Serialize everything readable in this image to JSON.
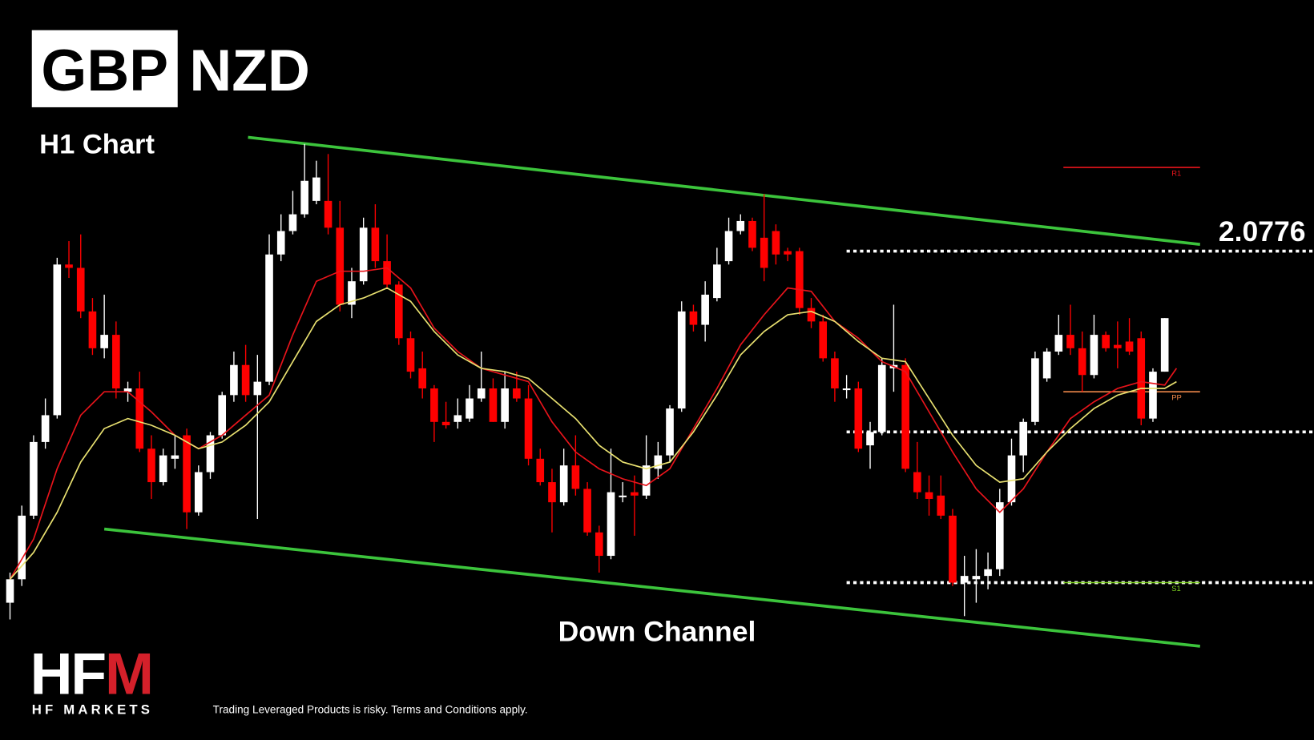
{
  "header": {
    "base": "GBP",
    "quote": "NZD",
    "timeframe": "H1 Chart"
  },
  "chart_data": {
    "type": "candlestick",
    "annotation": "Down Channel",
    "up_color": "#ffffff",
    "down_color": "#ff0000",
    "xlim": [
      -0.85,
      110.67
    ],
    "ylim": [
      2.063,
      2.0851
    ],
    "ohlc": [
      [
        2.0671,
        2.068,
        2.0666,
        2.0678
      ],
      [
        2.0678,
        2.07,
        2.0676,
        2.0697
      ],
      [
        2.0697,
        2.0721,
        2.0696,
        2.0719
      ],
      [
        2.0719,
        2.0732,
        2.0717,
        2.0727
      ],
      [
        2.0727,
        2.0774,
        2.0726,
        2.0772
      ],
      [
        2.0772,
        2.0779,
        2.0768,
        2.0771
      ],
      [
        2.0771,
        2.0781,
        2.0756,
        2.0758
      ],
      [
        2.0758,
        2.0762,
        2.0745,
        2.0747
      ],
      [
        2.0747,
        2.0763,
        2.0744,
        2.0751
      ],
      [
        2.0751,
        2.0755,
        2.0732,
        2.0735
      ],
      [
        2.0734,
        2.0737,
        2.0731,
        2.0735
      ],
      [
        2.0735,
        2.074,
        2.0716,
        2.0717
      ],
      [
        2.0717,
        2.0721,
        2.0702,
        2.0707
      ],
      [
        2.0707,
        2.0717,
        2.0706,
        2.0715
      ],
      [
        2.0714,
        2.0721,
        2.0711,
        2.0715
      ],
      [
        2.0721,
        2.0723,
        2.0693,
        2.0698
      ],
      [
        2.0698,
        2.0712,
        2.0697,
        2.071
      ],
      [
        2.071,
        2.0722,
        2.0708,
        2.0721
      ],
      [
        2.0721,
        2.0734,
        2.072,
        2.0733
      ],
      [
        2.0733,
        2.0746,
        2.0731,
        2.0742
      ],
      [
        2.0742,
        2.0748,
        2.0731,
        2.0733
      ],
      [
        2.0733,
        2.0745,
        2.0696,
        2.0737
      ],
      [
        2.0737,
        2.0781,
        2.0736,
        2.0775
      ],
      [
        2.0775,
        2.0787,
        2.0773,
        2.0782
      ],
      [
        2.0782,
        2.0794,
        2.0781,
        2.0787
      ],
      [
        2.0787,
        2.0808,
        2.0786,
        2.0797
      ],
      [
        2.0791,
        2.0803,
        2.079,
        2.0798
      ],
      [
        2.0791,
        2.0805,
        2.0781,
        2.0783
      ],
      [
        2.0783,
        2.0791,
        2.0758,
        2.076
      ],
      [
        2.076,
        2.0771,
        2.0756,
        2.0767
      ],
      [
        2.0767,
        2.0786,
        2.0766,
        2.0783
      ],
      [
        2.0783,
        2.079,
        2.0771,
        2.0773
      ],
      [
        2.0773,
        2.0781,
        2.0765,
        2.0766
      ],
      [
        2.0766,
        2.0767,
        2.0748,
        2.075
      ],
      [
        2.075,
        2.0752,
        2.0738,
        2.074
      ],
      [
        2.0741,
        2.0746,
        2.0732,
        2.0735
      ],
      [
        2.0735,
        2.0736,
        2.0719,
        2.0725
      ],
      [
        2.0725,
        2.0731,
        2.0723,
        2.0724
      ],
      [
        2.0725,
        2.0732,
        2.0723,
        2.0727
      ],
      [
        2.0726,
        2.0736,
        2.0725,
        2.0732
      ],
      [
        2.0732,
        2.0746,
        2.0731,
        2.0735
      ],
      [
        2.0735,
        2.0738,
        2.0725,
        2.0725
      ],
      [
        2.0725,
        2.074,
        2.0723,
        2.0735
      ],
      [
        2.0735,
        2.074,
        2.0731,
        2.0732
      ],
      [
        2.0732,
        2.0736,
        2.0712,
        2.0714
      ],
      [
        2.0714,
        2.0717,
        2.0706,
        2.0707
      ],
      [
        2.0707,
        2.0711,
        2.0692,
        2.0701
      ],
      [
        2.0701,
        2.0717,
        2.07,
        2.0712
      ],
      [
        2.0712,
        2.0721,
        2.0703,
        2.0705
      ],
      [
        2.0705,
        2.0707,
        2.0691,
        2.0692
      ],
      [
        2.0692,
        2.0694,
        2.068,
        2.0685
      ],
      [
        2.0685,
        2.0717,
        2.0684,
        2.0704
      ],
      [
        2.0703,
        2.0707,
        2.0701,
        2.0703
      ],
      [
        2.0704,
        2.0709,
        2.0691,
        2.0703
      ],
      [
        2.0703,
        2.0721,
        2.0702,
        2.0712
      ],
      [
        2.0711,
        2.0719,
        2.0708,
        2.0715
      ],
      [
        2.0715,
        2.073,
        2.0713,
        2.0729
      ],
      [
        2.0729,
        2.0761,
        2.0728,
        2.0758
      ],
      [
        2.0758,
        2.076,
        2.0752,
        2.0754
      ],
      [
        2.0754,
        2.0767,
        2.0749,
        2.0763
      ],
      [
        2.0762,
        2.0777,
        2.0761,
        2.0772
      ],
      [
        2.0773,
        2.0786,
        2.0772,
        2.0782
      ],
      [
        2.0782,
        2.0787,
        2.0781,
        2.0785
      ],
      [
        2.0785,
        2.0786,
        2.0776,
        2.0777
      ],
      [
        2.078,
        2.0793,
        2.0767,
        2.0771
      ],
      [
        2.0782,
        2.0784,
        2.0772,
        2.0775
      ],
      [
        2.0776,
        2.0777,
        2.0773,
        2.0775
      ],
      [
        2.0776,
        2.0777,
        2.0757,
        2.0759
      ],
      [
        2.0759,
        2.0762,
        2.0753,
        2.0755
      ],
      [
        2.0755,
        2.0757,
        2.0743,
        2.0744
      ],
      [
        2.0744,
        2.0746,
        2.0731,
        2.0735
      ],
      [
        2.0735,
        2.0739,
        2.0732,
        2.0735
      ],
      [
        2.0735,
        2.0737,
        2.0716,
        2.0717
      ],
      [
        2.0718,
        2.0725,
        2.0711,
        2.0722
      ],
      [
        2.0722,
        2.0744,
        2.0721,
        2.0742
      ],
      [
        2.0741,
        2.076,
        2.0734,
        2.0742
      ],
      [
        2.0742,
        2.0744,
        2.071,
        2.0711
      ],
      [
        2.071,
        2.0719,
        2.0702,
        2.0704
      ],
      [
        2.0704,
        2.0709,
        2.0697,
        2.0702
      ],
      [
        2.0703,
        2.0709,
        2.0696,
        2.0697
      ],
      [
        2.0697,
        2.0699,
        2.0676,
        2.0677
      ],
      [
        2.0677,
        2.0685,
        2.0667,
        2.0679
      ],
      [
        2.0678,
        2.0687,
        2.0671,
        2.0679
      ],
      [
        2.0679,
        2.0686,
        2.0675,
        2.0681
      ],
      [
        2.0681,
        2.0705,
        2.0679,
        2.0701
      ],
      [
        2.0701,
        2.072,
        2.07,
        2.0715
      ],
      [
        2.0715,
        2.0726,
        2.071,
        2.0725
      ],
      [
        2.0725,
        2.0746,
        2.0724,
        2.0744
      ],
      [
        2.0738,
        2.0747,
        2.0737,
        2.0746
      ],
      [
        2.0746,
        2.0757,
        2.0745,
        2.0751
      ],
      [
        2.0751,
        2.076,
        2.0745,
        2.0747
      ],
      [
        2.0747,
        2.0752,
        2.0734,
        2.0739
      ],
      [
        2.0739,
        2.0757,
        2.0738,
        2.0751
      ],
      [
        2.0751,
        2.0752,
        2.0746,
        2.0747
      ],
      [
        2.0748,
        2.0755,
        2.0741,
        2.0747
      ],
      [
        2.0749,
        2.0756,
        2.0745,
        2.0746
      ],
      [
        2.075,
        2.0752,
        2.0724,
        2.0726
      ],
      [
        2.0726,
        2.0741,
        2.0725,
        2.074
      ],
      [
        2.074,
        2.0756,
        2.074,
        2.0756
      ]
    ],
    "lines": [
      {
        "color": "#e8141b",
        "x": [
          0,
          2,
          4,
          6,
          8,
          10,
          12,
          14,
          16,
          18,
          20,
          22,
          24,
          26,
          28,
          30,
          32,
          34,
          36,
          38,
          40,
          42,
          44,
          46,
          48,
          50,
          52,
          54,
          56,
          58,
          60,
          62,
          64,
          66,
          68,
          70,
          72,
          74,
          76,
          78,
          80,
          82,
          84,
          86,
          88,
          90,
          92,
          94,
          96,
          98,
          99
        ],
        "values": [
          2.0678,
          2.069,
          2.0711,
          2.0727,
          2.0734,
          2.0734,
          2.0728,
          2.0721,
          2.0717,
          2.0721,
          2.0727,
          2.0733,
          2.0751,
          2.0767,
          2.077,
          2.077,
          2.0771,
          2.0765,
          2.0753,
          2.0746,
          2.0741,
          2.0739,
          2.0737,
          2.0725,
          2.0716,
          2.0711,
          2.0708,
          2.0706,
          2.0711,
          2.0723,
          2.0735,
          2.0748,
          2.0757,
          2.0765,
          2.0764,
          2.0755,
          2.075,
          2.0743,
          2.074,
          2.0728,
          2.0716,
          2.0705,
          2.0698,
          2.0705,
          2.0716,
          2.0726,
          2.0731,
          2.0735,
          2.0737,
          2.0736,
          2.0741
        ]
      },
      {
        "color": "#e8e070",
        "x": [
          0,
          2,
          4,
          6,
          8,
          10,
          12,
          14,
          16,
          18,
          20,
          22,
          24,
          26,
          28,
          30,
          32,
          34,
          36,
          38,
          40,
          42,
          44,
          46,
          48,
          50,
          52,
          54,
          56,
          58,
          60,
          62,
          64,
          66,
          68,
          70,
          72,
          74,
          76,
          78,
          80,
          82,
          84,
          86,
          88,
          90,
          92,
          94,
          96,
          98,
          99
        ],
        "values": [
          2.0678,
          2.0686,
          2.0698,
          2.0713,
          2.0723,
          2.0726,
          2.0724,
          2.0721,
          2.0717,
          2.0719,
          2.0724,
          2.0731,
          2.0743,
          2.0755,
          2.076,
          2.0762,
          2.0765,
          2.0761,
          2.0752,
          2.0745,
          2.0741,
          2.074,
          2.0738,
          2.0732,
          2.0726,
          2.0718,
          2.0713,
          2.0711,
          2.0713,
          2.0722,
          2.0733,
          2.0745,
          2.0752,
          2.0757,
          2.0758,
          2.0755,
          2.0749,
          2.0744,
          2.0743,
          2.0732,
          2.0721,
          2.0712,
          2.0707,
          2.0708,
          2.0716,
          2.0723,
          2.0729,
          2.0733,
          2.0735,
          2.0735,
          2.0737
        ]
      }
    ],
    "trendlines": {
      "color": "#3cc43c",
      "lines": [
        {
          "x": [
            20.2,
            101
          ],
          "values": [
            2.081,
            2.0778
          ]
        },
        {
          "x": [
            8,
            101
          ],
          "values": [
            2.0693,
            2.0658
          ]
        }
      ]
    },
    "levels": {
      "values": [
        2.0776,
        2.0722,
        2.0677
      ],
      "x_start": 71
    },
    "pivot_x": [
      89.4,
      101
    ],
    "pivots": [
      {
        "label": "R1",
        "value": 2.0801,
        "color": "#e8141b"
      },
      {
        "label": "PP",
        "value": 2.0734,
        "color": "#f0884a"
      },
      {
        "label": "S1",
        "value": 2.0677,
        "color": "#7ed321"
      }
    ]
  },
  "footer": {
    "logo_main": "HF",
    "logo_accent": "M",
    "brand": "HF MARKETS",
    "disclaimer": "Trading Leveraged Products is risky. Terms and Conditions apply."
  }
}
